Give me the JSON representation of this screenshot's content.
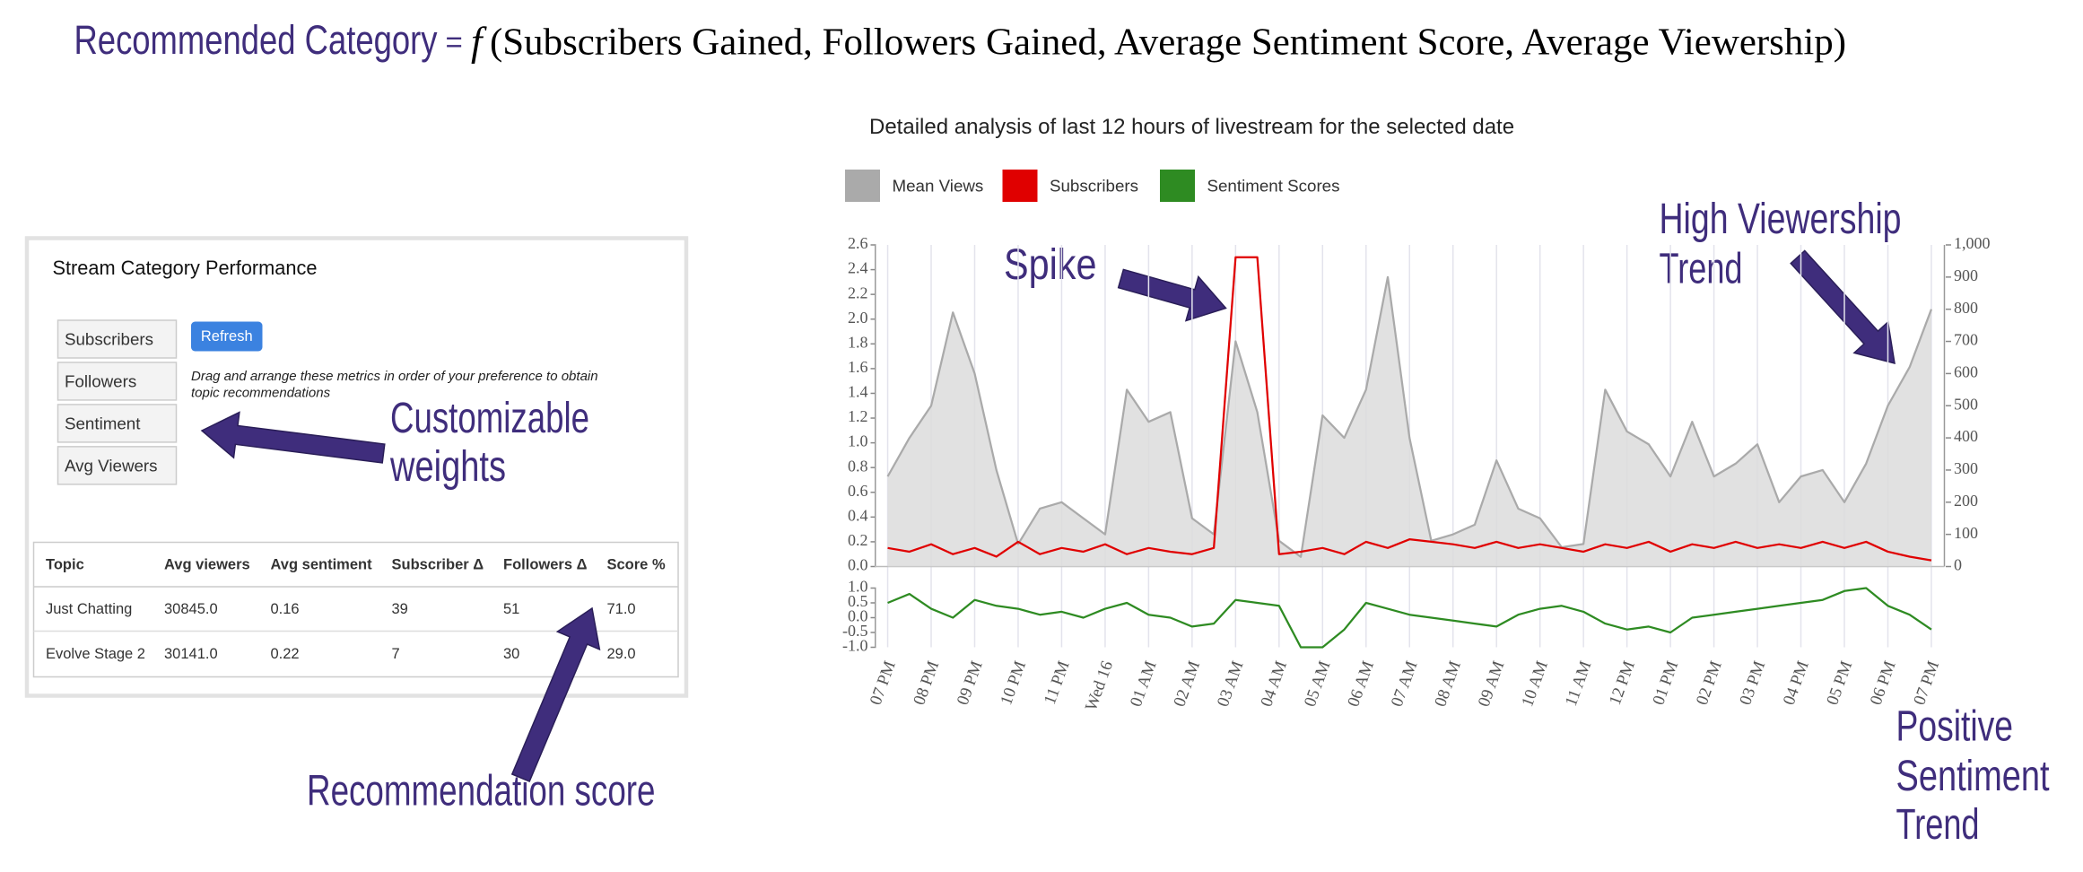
{
  "header": {
    "title": "Recommended Category",
    "equals": "=",
    "function": "f",
    "arguments": "(Subscribers Gained, Followers Gained, Average Sentiment Score, Average Viewership)"
  },
  "panel": {
    "title": "Stream Category Performance",
    "metrics": [
      "Subscribers",
      "Followers",
      "Sentiment",
      "Avg Viewers"
    ],
    "button": "Refresh",
    "instructions": [
      "Drag and arrange these metrics in order of your preference to obtain",
      "topic recommendations"
    ]
  },
  "table": {
    "columns": [
      "Topic",
      "Avg viewers",
      "Avg sentiment",
      "Subscriber Δ",
      "Followers Δ",
      "Score %"
    ],
    "rows": [
      [
        "Just Chatting",
        "30845.0",
        "0.16",
        "39",
        "51",
        "71.0"
      ],
      [
        "Evolve Stage 2",
        "30141.0",
        "0.22",
        "7",
        "30",
        "29.0"
      ]
    ]
  },
  "annotations": {
    "weights": [
      "Customizable",
      "weights"
    ],
    "score": "Recommendation score",
    "spike": "Spike",
    "viewership": [
      "High Viewership",
      "Trend"
    ],
    "sentiment": [
      "Positive",
      "Sentiment",
      "Trend"
    ]
  },
  "chart_data": {
    "type": "line",
    "title": "Detailed analysis of last 12 hours of livestream for the selected date",
    "grid": "x",
    "x": [
      0,
      0.5,
      1,
      1.5,
      2,
      2.5,
      3,
      3.5,
      4,
      4.5,
      5,
      5.5,
      6,
      6.5,
      7,
      7.5,
      8,
      8.5,
      9,
      9.5,
      10,
      10.5,
      11,
      11.5,
      12,
      12.5,
      13,
      13.5,
      14,
      14.5,
      15,
      15.5,
      16,
      16.5,
      17,
      17.5,
      18,
      18.5,
      19,
      19.5,
      20,
      20.5,
      21,
      21.5,
      22,
      22.5,
      23,
      23.5,
      24
    ],
    "xlim": [
      -0.3,
      24.3
    ],
    "xticks": [
      {
        "value": 0,
        "label": "07 PM"
      },
      {
        "value": 1,
        "label": "08 PM"
      },
      {
        "value": 2,
        "label": "09 PM"
      },
      {
        "value": 3,
        "label": "10 PM"
      },
      {
        "value": 4,
        "label": "11 PM"
      },
      {
        "value": 5,
        "label": "Wed 16"
      },
      {
        "value": 6,
        "label": "01 AM"
      },
      {
        "value": 7,
        "label": "02 AM"
      },
      {
        "value": 8,
        "label": "03 AM"
      },
      {
        "value": 9,
        "label": "04 AM"
      },
      {
        "value": 10,
        "label": "05 AM"
      },
      {
        "value": 11,
        "label": "06 AM"
      },
      {
        "value": 12,
        "label": "07 AM"
      },
      {
        "value": 13,
        "label": "08 AM"
      },
      {
        "value": 14,
        "label": "09 AM"
      },
      {
        "value": 15,
        "label": "10 AM"
      },
      {
        "value": 16,
        "label": "11 AM"
      },
      {
        "value": 17,
        "label": "12 PM"
      },
      {
        "value": 18,
        "label": "01 PM"
      },
      {
        "value": 19,
        "label": "02 PM"
      },
      {
        "value": 20,
        "label": "03 PM"
      },
      {
        "value": 21,
        "label": "04 PM"
      },
      {
        "value": 22,
        "label": "05 PM"
      },
      {
        "value": 23,
        "label": "06 PM"
      },
      {
        "value": 24,
        "label": "07 PM"
      }
    ],
    "ylim": [
      0,
      2.6
    ],
    "yticks": [
      {
        "value": 0,
        "label": "0.0"
      },
      0.2,
      0.4,
      0.6,
      0.8,
      {
        "value": 1,
        "label": "1.0"
      },
      1.2,
      1.4,
      1.6,
      1.8,
      {
        "value": 2,
        "label": "2.0"
      },
      2.2,
      2.4,
      2.6
    ],
    "y2lim": [
      0,
      1000
    ],
    "y2ticks": [
      0,
      100,
      200,
      300,
      400,
      500,
      600,
      700,
      800,
      900,
      {
        "value": 1000,
        "label": "1,000"
      }
    ],
    "y3lim": [
      -1,
      1
    ],
    "y3ticks": [
      {
        "value": -1,
        "label": "-1.0"
      },
      -0.5,
      {
        "value": 0,
        "label": "0.0"
      },
      0.5,
      {
        "value": 1,
        "label": "1.0"
      }
    ],
    "series": [
      {
        "name": "Mean Views",
        "color": "#aaaaaa",
        "axis": "y2",
        "values": [
          280,
          400,
          500,
          790,
          600,
          300,
          70,
          180,
          200,
          150,
          100,
          550,
          450,
          480,
          150,
          100,
          700,
          480,
          80,
          30,
          470,
          400,
          550,
          900,
          400,
          80,
          100,
          130,
          330,
          180,
          150,
          60,
          70,
          550,
          420,
          380,
          280,
          450,
          280,
          320,
          380,
          200,
          280,
          300,
          200,
          320,
          500,
          620,
          800
        ]
      },
      {
        "name": "Subscribers",
        "color": "#e00000",
        "axis": "y",
        "values": [
          0.15,
          0.12,
          0.18,
          0.1,
          0.15,
          0.08,
          0.2,
          0.1,
          0.15,
          0.12,
          0.18,
          0.1,
          0.15,
          0.12,
          0.1,
          0.15,
          2.5,
          2.5,
          0.1,
          0.12,
          0.15,
          0.1,
          0.2,
          0.15,
          0.22,
          0.2,
          0.18,
          0.15,
          0.2,
          0.15,
          0.18,
          0.15,
          0.12,
          0.18,
          0.15,
          0.2,
          0.12,
          0.18,
          0.15,
          0.2,
          0.15,
          0.18,
          0.15,
          0.2,
          0.15,
          0.2,
          0.12,
          0.08,
          0.05
        ]
      },
      {
        "name": "Sentiment Scores",
        "color": "#2e8b22",
        "axis": "y3",
        "values": [
          0.5,
          0.8,
          0.3,
          0,
          0.6,
          0.4,
          0.3,
          0.1,
          0.2,
          0,
          0.3,
          0.5,
          0.1,
          0,
          -0.3,
          -0.2,
          0.6,
          0.5,
          0.4,
          -1,
          -1,
          -0.4,
          0.5,
          0.3,
          0.1,
          0,
          -0.1,
          -0.2,
          -0.3,
          0.1,
          0.3,
          0.4,
          0.2,
          -0.2,
          -0.4,
          -0.3,
          -0.5,
          0,
          0.1,
          0.2,
          0.3,
          0.4,
          0.5,
          0.6,
          0.9,
          1,
          0.4,
          0.1,
          -0.4
        ]
      }
    ]
  }
}
